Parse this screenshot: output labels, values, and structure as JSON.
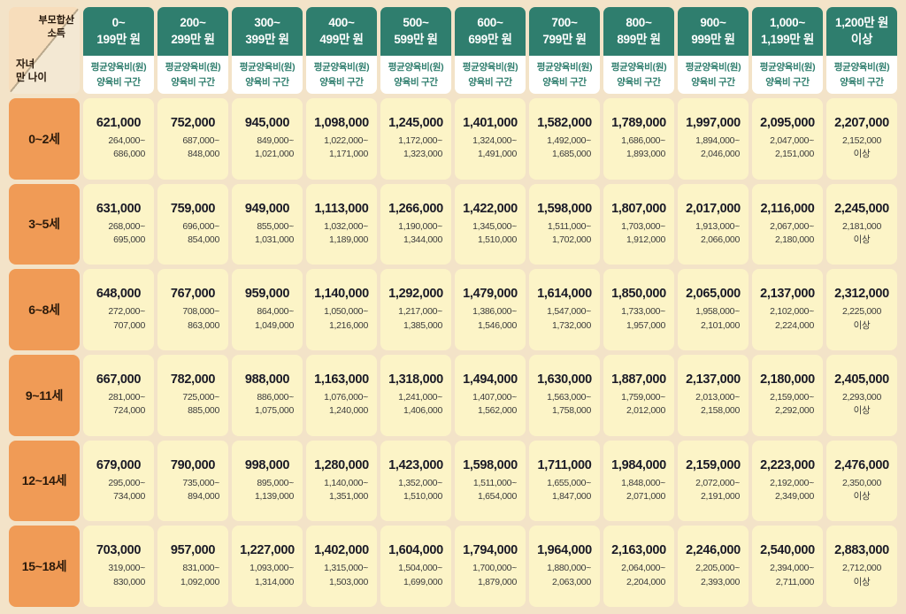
{
  "colors": {
    "bg": "#f3e3c8",
    "teal": "#2f7e6e",
    "orange": "#f09b56",
    "yellow": "#fcf4c7",
    "ink": "#1a1a26",
    "rangecol": "#3c3c3c",
    "cornertop": "#f7ddbb",
    "cornerbottom": "#f3e8d3",
    "diagline": "#b9a88c"
  },
  "chart_data": {
    "type": "table",
    "corner": {
      "top_right": "부모합산\n소득",
      "bottom_left": "자녀\n만 나이"
    },
    "subheader_line1": "평균양육비(원)",
    "subheader_line2": "양육비 구간",
    "column_headers": [
      "0~\n199만 원",
      "200~\n299만 원",
      "300~\n399만 원",
      "400~\n499만 원",
      "500~\n599만 원",
      "600~\n699만 원",
      "700~\n799만 원",
      "800~\n899만 원",
      "900~\n999만 원",
      "1,000~\n1,199만 원",
      "1,200만 원\n이상"
    ],
    "row_headers": [
      "0~2세",
      "3~5세",
      "6~8세",
      "9~11세",
      "12~14세",
      "15~18세"
    ],
    "cells": [
      [
        {
          "avg": "621,000",
          "r1": "264,000~",
          "r2": "686,000"
        },
        {
          "avg": "752,000",
          "r1": "687,000~",
          "r2": "848,000"
        },
        {
          "avg": "945,000",
          "r1": "849,000~",
          "r2": "1,021,000"
        },
        {
          "avg": "1,098,000",
          "r1": "1,022,000~",
          "r2": "1,171,000"
        },
        {
          "avg": "1,245,000",
          "r1": "1,172,000~",
          "r2": "1,323,000"
        },
        {
          "avg": "1,401,000",
          "r1": "1,324,000~",
          "r2": "1,491,000"
        },
        {
          "avg": "1,582,000",
          "r1": "1,492,000~",
          "r2": "1,685,000"
        },
        {
          "avg": "1,789,000",
          "r1": "1,686,000~",
          "r2": "1,893,000"
        },
        {
          "avg": "1,997,000",
          "r1": "1,894,000~",
          "r2": "2,046,000"
        },
        {
          "avg": "2,095,000",
          "r1": "2,047,000~",
          "r2": "2,151,000"
        },
        {
          "avg": "2,207,000",
          "r1": "2,152,000",
          "r2": "이상"
        }
      ],
      [
        {
          "avg": "631,000",
          "r1": "268,000~",
          "r2": "695,000"
        },
        {
          "avg": "759,000",
          "r1": "696,000~",
          "r2": "854,000"
        },
        {
          "avg": "949,000",
          "r1": "855,000~",
          "r2": "1,031,000"
        },
        {
          "avg": "1,113,000",
          "r1": "1,032,000~",
          "r2": "1,189,000"
        },
        {
          "avg": "1,266,000",
          "r1": "1,190,000~",
          "r2": "1,344,000"
        },
        {
          "avg": "1,422,000",
          "r1": "1,345,000~",
          "r2": "1,510,000"
        },
        {
          "avg": "1,598,000",
          "r1": "1,511,000~",
          "r2": "1,702,000"
        },
        {
          "avg": "1,807,000",
          "r1": "1,703,000~",
          "r2": "1,912,000"
        },
        {
          "avg": "2,017,000",
          "r1": "1,913,000~",
          "r2": "2,066,000"
        },
        {
          "avg": "2,116,000",
          "r1": "2,067,000~",
          "r2": "2,180,000"
        },
        {
          "avg": "2,245,000",
          "r1": "2,181,000",
          "r2": "이상"
        }
      ],
      [
        {
          "avg": "648,000",
          "r1": "272,000~",
          "r2": "707,000"
        },
        {
          "avg": "767,000",
          "r1": "708,000~",
          "r2": "863,000"
        },
        {
          "avg": "959,000",
          "r1": "864,000~",
          "r2": "1,049,000"
        },
        {
          "avg": "1,140,000",
          "r1": "1,050,000~",
          "r2": "1,216,000"
        },
        {
          "avg": "1,292,000",
          "r1": "1,217,000~",
          "r2": "1,385,000"
        },
        {
          "avg": "1,479,000",
          "r1": "1,386,000~",
          "r2": "1,546,000"
        },
        {
          "avg": "1,614,000",
          "r1": "1,547,000~",
          "r2": "1,732,000"
        },
        {
          "avg": "1,850,000",
          "r1": "1,733,000~",
          "r2": "1,957,000"
        },
        {
          "avg": "2,065,000",
          "r1": "1,958,000~",
          "r2": "2,101,000"
        },
        {
          "avg": "2,137,000",
          "r1": "2,102,000~",
          "r2": "2,224,000"
        },
        {
          "avg": "2,312,000",
          "r1": "2,225,000",
          "r2": "이상"
        }
      ],
      [
        {
          "avg": "667,000",
          "r1": "281,000~",
          "r2": "724,000"
        },
        {
          "avg": "782,000",
          "r1": "725,000~",
          "r2": "885,000"
        },
        {
          "avg": "988,000",
          "r1": "886,000~",
          "r2": "1,075,000"
        },
        {
          "avg": "1,163,000",
          "r1": "1,076,000~",
          "r2": "1,240,000"
        },
        {
          "avg": "1,318,000",
          "r1": "1,241,000~",
          "r2": "1,406,000"
        },
        {
          "avg": "1,494,000",
          "r1": "1,407,000~",
          "r2": "1,562,000"
        },
        {
          "avg": "1,630,000",
          "r1": "1,563,000~",
          "r2": "1,758,000"
        },
        {
          "avg": "1,887,000",
          "r1": "1,759,000~",
          "r2": "2,012,000"
        },
        {
          "avg": "2,137,000",
          "r1": "2,013,000~",
          "r2": "2,158,000"
        },
        {
          "avg": "2,180,000",
          "r1": "2,159,000~",
          "r2": "2,292,000"
        },
        {
          "avg": "2,405,000",
          "r1": "2,293,000",
          "r2": "이상"
        }
      ],
      [
        {
          "avg": "679,000",
          "r1": "295,000~",
          "r2": "734,000"
        },
        {
          "avg": "790,000",
          "r1": "735,000~",
          "r2": "894,000"
        },
        {
          "avg": "998,000",
          "r1": "895,000~",
          "r2": "1,139,000"
        },
        {
          "avg": "1,280,000",
          "r1": "1,140,000~",
          "r2": "1,351,000"
        },
        {
          "avg": "1,423,000",
          "r1": "1,352,000~",
          "r2": "1,510,000"
        },
        {
          "avg": "1,598,000",
          "r1": "1,511,000~",
          "r2": "1,654,000"
        },
        {
          "avg": "1,711,000",
          "r1": "1,655,000~",
          "r2": "1,847,000"
        },
        {
          "avg": "1,984,000",
          "r1": "1,848,000~",
          "r2": "2,071,000"
        },
        {
          "avg": "2,159,000",
          "r1": "2,072,000~",
          "r2": "2,191,000"
        },
        {
          "avg": "2,223,000",
          "r1": "2,192,000~",
          "r2": "2,349,000"
        },
        {
          "avg": "2,476,000",
          "r1": "2,350,000",
          "r2": "이상"
        }
      ],
      [
        {
          "avg": "703,000",
          "r1": "319,000~",
          "r2": "830,000"
        },
        {
          "avg": "957,000",
          "r1": "831,000~",
          "r2": "1,092,000"
        },
        {
          "avg": "1,227,000",
          "r1": "1,093,000~",
          "r2": "1,314,000"
        },
        {
          "avg": "1,402,000",
          "r1": "1,315,000~",
          "r2": "1,503,000"
        },
        {
          "avg": "1,604,000",
          "r1": "1,504,000~",
          "r2": "1,699,000"
        },
        {
          "avg": "1,794,000",
          "r1": "1,700,000~",
          "r2": "1,879,000"
        },
        {
          "avg": "1,964,000",
          "r1": "1,880,000~",
          "r2": "2,063,000"
        },
        {
          "avg": "2,163,000",
          "r1": "2,064,000~",
          "r2": "2,204,000"
        },
        {
          "avg": "2,246,000",
          "r1": "2,205,000~",
          "r2": "2,393,000"
        },
        {
          "avg": "2,540,000",
          "r1": "2,394,000~",
          "r2": "2,711,000"
        },
        {
          "avg": "2,883,000",
          "r1": "2,712,000",
          "r2": "이상"
        }
      ]
    ]
  }
}
